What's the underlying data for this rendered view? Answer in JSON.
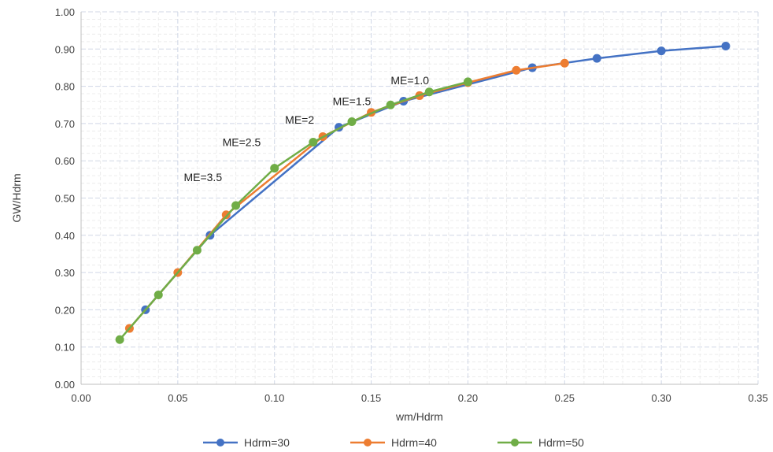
{
  "chart_data": {
    "type": "line",
    "title": "",
    "xlabel": "wm/Hdrm",
    "ylabel": "GW/Hdrm",
    "xlim": [
      0,
      0.35
    ],
    "ylim": [
      0,
      1.0
    ],
    "x_ticks": [
      "0.00",
      "0.05",
      "0.10",
      "0.15",
      "0.20",
      "0.25",
      "0.30",
      "0.35"
    ],
    "y_ticks": [
      "0.00",
      "0.10",
      "0.20",
      "0.30",
      "0.40",
      "0.50",
      "0.60",
      "0.70",
      "0.80",
      "0.90",
      "1.00"
    ],
    "grid": true,
    "legend_position": "bottom",
    "series": [
      {
        "name": "Hdrm=30",
        "color": "#4472c4",
        "x": [
          0.0333,
          0.0667,
          0.1333,
          0.1667,
          0.2333,
          0.2667,
          0.3,
          0.3333
        ],
        "y": [
          0.2,
          0.4,
          0.69,
          0.76,
          0.85,
          0.875,
          0.895,
          0.908
        ]
      },
      {
        "name": "Hdrm=40",
        "color": "#ed7d31",
        "x": [
          0.025,
          0.05,
          0.075,
          0.125,
          0.15,
          0.175,
          0.2,
          0.225,
          0.25
        ],
        "y": [
          0.15,
          0.3,
          0.455,
          0.665,
          0.73,
          0.775,
          0.81,
          0.843,
          0.862
        ]
      },
      {
        "name": "Hdrm=50",
        "color": "#70ad47",
        "x": [
          0.02,
          0.04,
          0.06,
          0.08,
          0.1,
          0.12,
          0.14,
          0.16,
          0.18,
          0.2
        ],
        "y": [
          0.12,
          0.24,
          0.36,
          0.48,
          0.58,
          0.65,
          0.705,
          0.75,
          0.785,
          0.812
        ]
      }
    ],
    "annotations": [
      {
        "text": "ME=1.0",
        "x": 0.17,
        "y": 0.805
      },
      {
        "text": "ME=1.5",
        "x": 0.14,
        "y": 0.75
      },
      {
        "text": "ME=2",
        "x": 0.113,
        "y": 0.7
      },
      {
        "text": "ME=2.5",
        "x": 0.083,
        "y": 0.64
      },
      {
        "text": "ME=3.5",
        "x": 0.063,
        "y": 0.545
      }
    ]
  }
}
